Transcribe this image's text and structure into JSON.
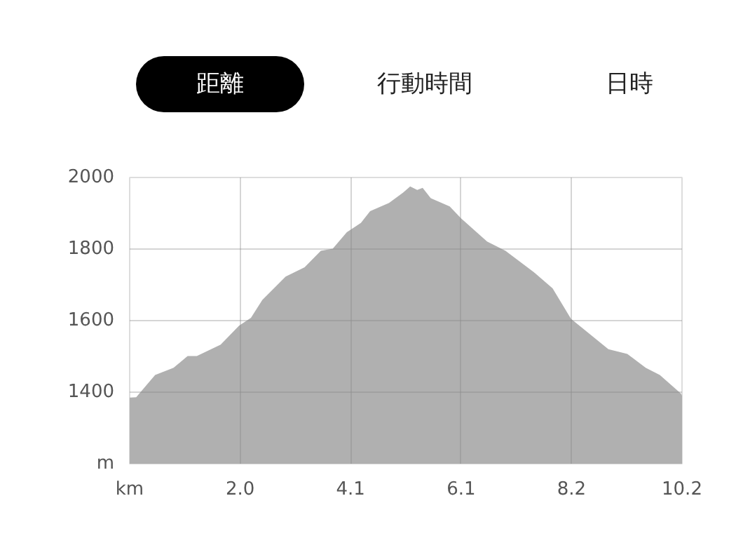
{
  "chart_data": {
    "type": "area",
    "annotations": [
      "距離",
      "行動時間",
      "日時"
    ],
    "x": [
      0,
      0.12,
      0.47,
      0.81,
      1.07,
      1.24,
      1.68,
      2.02,
      2.24,
      2.45,
      2.88,
      3.23,
      3.53,
      3.75,
      4.01,
      4.27,
      4.44,
      4.79,
      5.05,
      5.18,
      5.31,
      5.41,
      5.56,
      5.91,
      6.12,
      6.6,
      6.94,
      7.46,
      7.81,
      8.15,
      8.41,
      8.84,
      9.19,
      9.53,
      9.79,
      10.18,
      10.2
    ],
    "series": [
      {
        "color": "#b0b0b0",
        "values": [
          1385,
          1386,
          1448,
          1468,
          1501,
          1501,
          1533,
          1586,
          1608,
          1658,
          1723,
          1749,
          1795,
          1801,
          1847,
          1873,
          1906,
          1929,
          1958,
          1975,
          1965,
          1971,
          1942,
          1919,
          1886,
          1821,
          1795,
          1736,
          1690,
          1605,
          1573,
          1520,
          1507,
          1468,
          1448,
          1396,
          1390
        ]
      }
    ],
    "xlim": [
      0,
      10.2
    ],
    "ylim": [
      1200,
      2000
    ],
    "xticks": [
      {
        "value": 0,
        "label": "km"
      },
      {
        "value": 2.04,
        "label": "2.0"
      },
      {
        "value": 4.08,
        "label": "4.1"
      },
      {
        "value": 6.12,
        "label": "6.1"
      },
      {
        "value": 8.16,
        "label": "8.2"
      },
      10.2
    ],
    "yticks": [
      {
        "value": 1200,
        "label": "m"
      },
      1400,
      1600,
      1800,
      2000
    ],
    "grid": true
  }
}
